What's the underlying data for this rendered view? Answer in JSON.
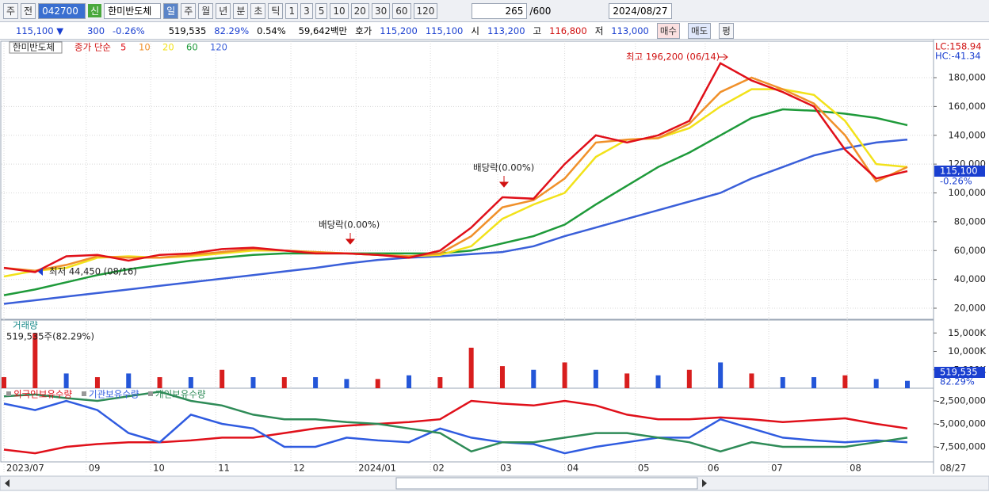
{
  "toolbar": {
    "market": "주",
    "prev": "전",
    "code": "042700",
    "badge": "신",
    "name": "한미반도체",
    "periods": [
      "일",
      "주",
      "월",
      "년",
      "분",
      "초",
      "틱"
    ],
    "intervals": [
      "1",
      "3",
      "5",
      "10",
      "20",
      "30",
      "60",
      "120"
    ],
    "count": "265",
    "max": "/600",
    "date": "2024/08/27"
  },
  "quote_bar": {
    "price": "115,100 ▼",
    "change": "300",
    "change_rate": "-0.26%",
    "volume": "519,535",
    "volume_rate": "82.29%",
    "turnover": "0.54%",
    "amount": "59,642백만",
    "ask_label": "호가",
    "ask": "115,200",
    "bid": "115,100",
    "open_label": "시",
    "open": "113,200",
    "high_label": "고",
    "high": "116,800",
    "low_label": "저",
    "low": "113,000",
    "buy": "매수",
    "sell": "매도",
    "avg": "평"
  },
  "chart_data": [
    {
      "type": "line",
      "title": "한미반도체",
      "legend_title": "종가 단순",
      "xlim": [
        0,
        29
      ],
      "ylim": [
        12300,
        205300
      ],
      "yticks": [
        {
          "value": 20000,
          "label": "20,000"
        },
        {
          "value": 40000,
          "label": "40,000"
        },
        {
          "value": 60000,
          "label": "60,000"
        },
        {
          "value": 80000,
          "label": "80,000"
        },
        {
          "value": 100000,
          "label": "100,000"
        },
        {
          "value": 120000,
          "label": "120,000"
        },
        {
          "value": 140000,
          "label": "140,000"
        },
        {
          "value": 160000,
          "label": "160,000"
        },
        {
          "value": 180000,
          "label": "180,000"
        }
      ],
      "grid": true,
      "series": [
        {
          "name": "120",
          "color": "#3a5fd9",
          "values": [
            23000,
            25500,
            28000,
            30500,
            33000,
            35500,
            38000,
            40500,
            43000,
            45500,
            48000,
            51000,
            53500,
            55000,
            56000,
            57500,
            59000,
            63000,
            70000,
            76000,
            82000,
            88000,
            94000,
            100000,
            110000,
            118000,
            126000,
            131000,
            135000,
            137000
          ]
        },
        {
          "name": "60",
          "color": "#1e9a3a",
          "values": [
            29000,
            33000,
            38000,
            43000,
            47000,
            50000,
            53000,
            55000,
            57000,
            58000,
            58000,
            58000,
            58000,
            58000,
            58000,
            60000,
            65000,
            70000,
            78000,
            92000,
            105000,
            118000,
            128000,
            140000,
            152000,
            158000,
            157000,
            155000,
            152000,
            147000
          ]
        },
        {
          "name": "20",
          "color": "#f2e21a",
          "values": [
            42000,
            46000,
            48000,
            55000,
            56000,
            55000,
            56000,
            58000,
            60000,
            60000,
            59000,
            58000,
            57000,
            56000,
            57000,
            63000,
            82000,
            92000,
            100000,
            125000,
            137000,
            138000,
            145000,
            160000,
            172000,
            172000,
            168000,
            150000,
            120000,
            118000
          ]
        },
        {
          "name": "10",
          "color": "#f0902a",
          "values": [
            48000,
            46000,
            50000,
            56000,
            55000,
            55000,
            57000,
            59000,
            61000,
            60000,
            59000,
            58000,
            57000,
            56000,
            58000,
            70000,
            90000,
            95000,
            110000,
            135000,
            137000,
            138000,
            148000,
            170000,
            180000,
            172000,
            162000,
            140000,
            108000,
            118000
          ]
        },
        {
          "name": "5",
          "color": "#e0101a",
          "values": [
            48000,
            45000,
            56000,
            57000,
            53000,
            57000,
            58000,
            61000,
            62000,
            60000,
            58000,
            58000,
            57000,
            55000,
            60000,
            76000,
            97000,
            96000,
            120000,
            140000,
            135000,
            140000,
            150000,
            190000,
            178000,
            170000,
            160000,
            130000,
            110000,
            115100
          ]
        }
      ],
      "annotations": [
        "최고 196,200 (06/14)",
        "최저 44,450 (08/16)",
        "배당락(0.00%)",
        "배당락(0.00%)"
      ],
      "right_labels": [
        "LC:158.94",
        "HC:-41.34"
      ],
      "last_price": "115,100",
      "last_change": "-0.26%"
    },
    {
      "type": "bar",
      "title": "거래량",
      "subtitle": "519,535주(82.29%)",
      "xlim": [
        0,
        29
      ],
      "ylim": [
        0,
        18500
      ],
      "yticks": [
        {
          "value": 5000,
          "label": "5,000K"
        },
        {
          "value": 10000,
          "label": "10,000K"
        },
        {
          "value": 15000,
          "label": "15,000K"
        }
      ],
      "values": [
        3000,
        15000,
        4000,
        3000,
        4000,
        3000,
        3000,
        5000,
        3000,
        3000,
        3000,
        2500,
        2500,
        3500,
        3000,
        11000,
        6000,
        5000,
        7000,
        5000,
        4000,
        3500,
        5000,
        7000,
        4000,
        3000,
        3000,
        3500,
        2500,
        2000
      ],
      "colors": [
        "#d81e1e",
        "#d81e1e",
        "#2456d8",
        "#d81e1e",
        "#2456d8",
        "#d81e1e",
        "#2456d8",
        "#d81e1e",
        "#2456d8",
        "#d81e1e",
        "#2456d8",
        "#2456d8",
        "#d81e1e",
        "#2456d8",
        "#d81e1e",
        "#d81e1e",
        "#d81e1e",
        "#2456d8",
        "#d81e1e",
        "#2456d8",
        "#d81e1e",
        "#2456d8",
        "#d81e1e",
        "#2456d8",
        "#d81e1e",
        "#2456d8",
        "#2456d8",
        "#d81e1e",
        "#2456d8",
        "#2456d8"
      ],
      "last_value": "519,535",
      "last_rate": "82.29%"
    },
    {
      "type": "line",
      "xlim": [
        0,
        29
      ],
      "ylim": [
        -9140000,
        -1120000
      ],
      "yticks": [
        {
          "value": -2500000,
          "label": "-2,500,000"
        },
        {
          "value": -5000000,
          "label": "-5,000,000"
        },
        {
          "value": -7500000,
          "label": "-7,500,000"
        }
      ],
      "series": [
        {
          "name": "외국인보유수량",
          "color": "#e0101a",
          "values": [
            -7800000,
            -8200000,
            -7500000,
            -7200000,
            -7000000,
            -7000000,
            -6800000,
            -6500000,
            -6500000,
            -6000000,
            -5500000,
            -5200000,
            -5000000,
            -4800000,
            -4500000,
            -2500000,
            -2800000,
            -3000000,
            -2500000,
            -3000000,
            -4000000,
            -4500000,
            -4500000,
            -4300000,
            -4500000,
            -4800000,
            -4600000,
            -4400000,
            -5000000,
            -5500000
          ]
        },
        {
          "name": "기관보유수량",
          "color": "#2f5be0",
          "values": [
            -2800000,
            -3500000,
            -2500000,
            -3500000,
            -6000000,
            -7000000,
            -4000000,
            -5000000,
            -5500000,
            -7500000,
            -7500000,
            -6500000,
            -6800000,
            -7000000,
            -5500000,
            -6500000,
            -7000000,
            -7200000,
            -8200000,
            -7500000,
            -7000000,
            -6500000,
            -6500000,
            -4500000,
            -5500000,
            -6500000,
            -6800000,
            -7000000,
            -6800000,
            -7000000
          ]
        },
        {
          "name": "개인보유수량",
          "color": "#2e8b57",
          "values": [
            -2000000,
            -1800000,
            -2200000,
            -2500000,
            -2000000,
            -1500000,
            -2500000,
            -3000000,
            -4000000,
            -4500000,
            -4500000,
            -4800000,
            -5000000,
            -5500000,
            -6000000,
            -8000000,
            -7000000,
            -7000000,
            -6500000,
            -6000000,
            -6000000,
            -6500000,
            -7000000,
            -8000000,
            -7000000,
            -7500000,
            -7500000,
            -7500000,
            -7000000,
            -6500000
          ]
        }
      ],
      "xticks": [
        {
          "value": 0,
          "label": "2023/07"
        },
        {
          "value": 2.64,
          "label": "09"
        },
        {
          "value": 4.71,
          "label": "10"
        },
        {
          "value": 6.8,
          "label": "11"
        },
        {
          "value": 9.21,
          "label": "12"
        },
        {
          "value": 11.3,
          "label": "2024/01"
        },
        {
          "value": 13.69,
          "label": "02"
        },
        {
          "value": 15.85,
          "label": "03"
        },
        {
          "value": 18.0,
          "label": "04"
        },
        {
          "value": 20.27,
          "label": "05"
        },
        {
          "value": 22.51,
          "label": "06"
        },
        {
          "value": 24.55,
          "label": "07"
        },
        {
          "value": 27.07,
          "label": "08"
        }
      ],
      "last_date": "08/27"
    }
  ]
}
